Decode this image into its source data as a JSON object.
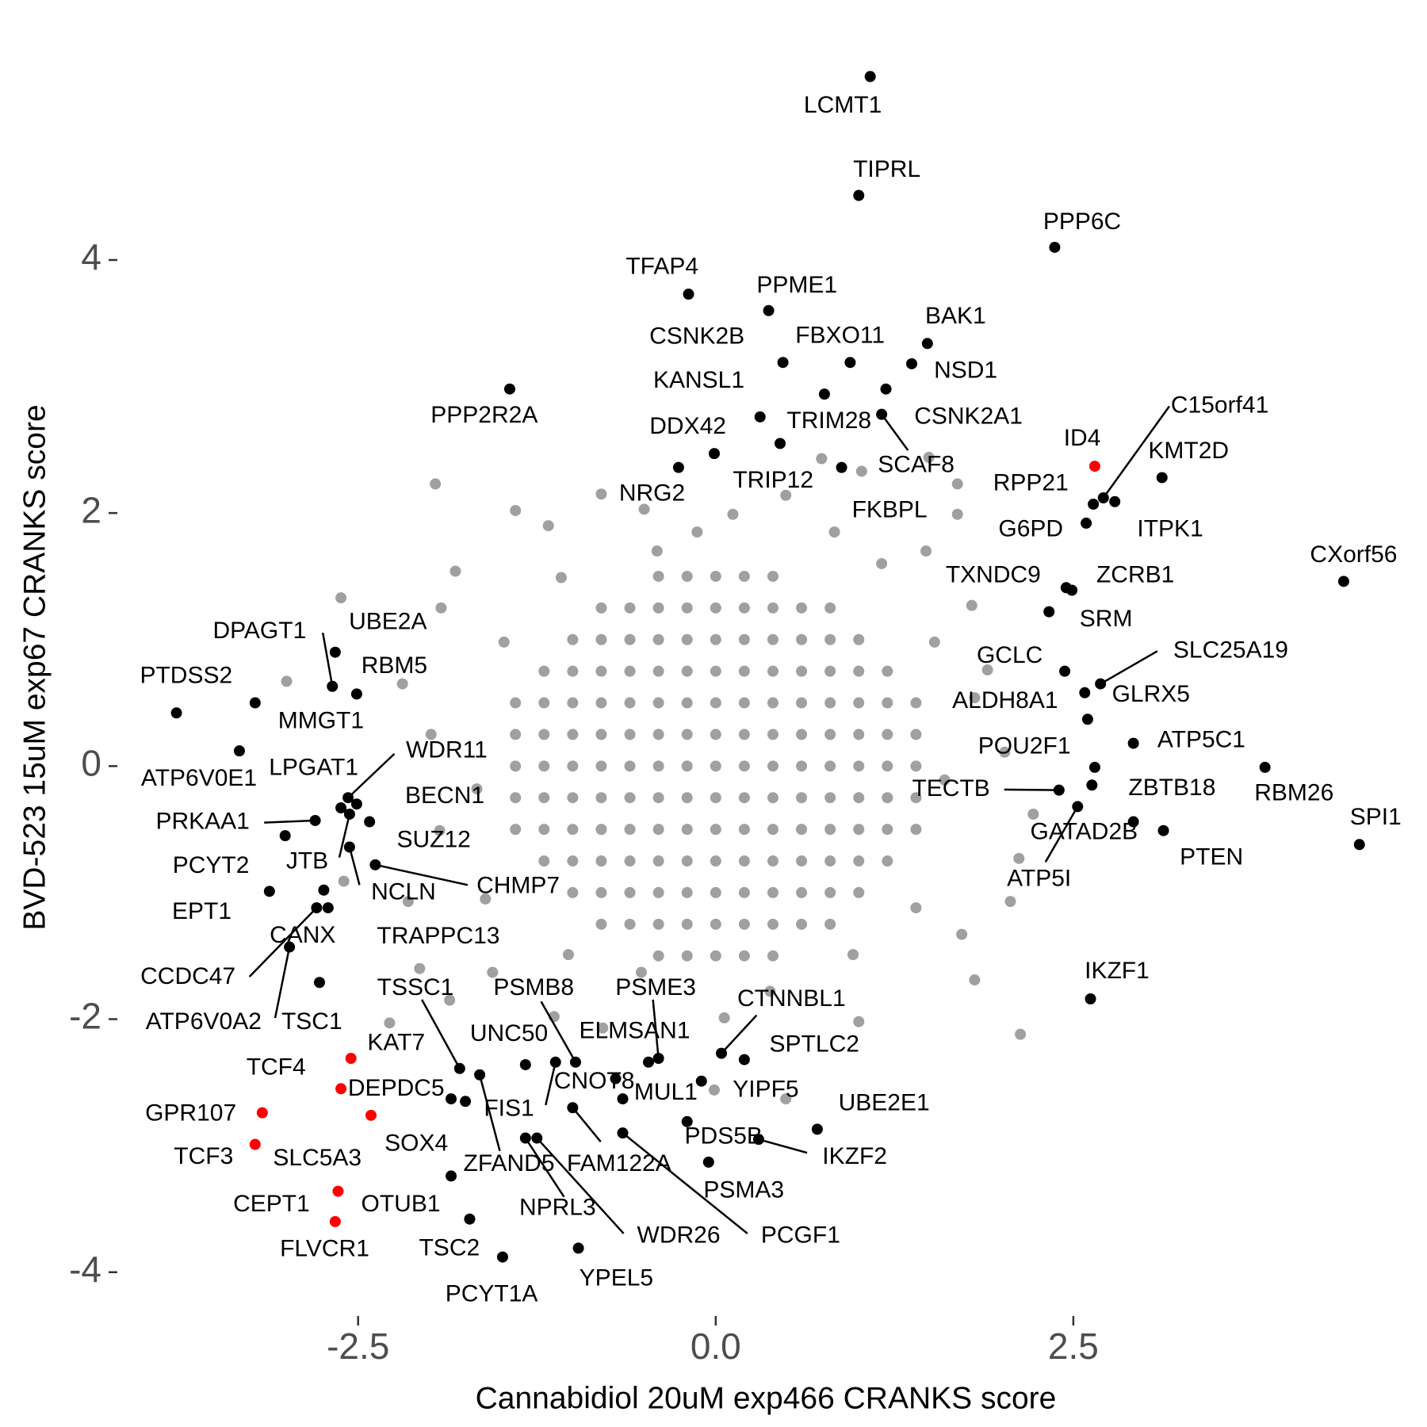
{
  "chart_data": {
    "type": "scatter",
    "x_label": "Cannabidiol 20uM exp466 CRANKS score",
    "y_label": "BVD-523 15uM exp67 CRANKS score",
    "xlim": [
      -4.17,
      4.87
    ],
    "ylim": [
      -4.31,
      5.62
    ],
    "xticks": [
      -2.5,
      {
        "value": 0,
        "label": "0.0"
      },
      2.5
    ],
    "yticks": [
      -4,
      -2,
      0,
      2,
      4
    ],
    "series": [
      {
        "color": "#a0a0a0",
        "x": [
          -0.4,
          -0.2,
          0,
          0.2,
          0.4,
          -0.8,
          -0.6,
          -0.4,
          -0.2,
          0,
          0.2,
          0.4,
          0.6,
          0.8,
          -1,
          -0.8,
          -0.6,
          -0.4,
          -0.2,
          0,
          0.2,
          0.4,
          0.6,
          0.8,
          1,
          -1.2,
          -1,
          -0.8,
          -0.6,
          -0.4,
          -0.2,
          0,
          0.2,
          0.4,
          0.6,
          0.8,
          1,
          1.2,
          -1.4,
          -1.2,
          -1,
          -0.8,
          -0.6,
          -0.4,
          -0.2,
          0,
          0.2,
          0.4,
          0.6,
          0.8,
          1,
          1.2,
          1.4,
          -1.4,
          -1.2,
          -1,
          -0.8,
          -0.6,
          -0.4,
          -0.2,
          0,
          0.2,
          0.4,
          0.6,
          0.8,
          1,
          1.2,
          1.4,
          -1.4,
          -1.2,
          -1,
          -0.8,
          -0.6,
          -0.4,
          -0.2,
          0,
          0.2,
          0.4,
          0.6,
          0.8,
          1,
          1.2,
          1.4,
          -1.4,
          -1.2,
          -1,
          -0.8,
          -0.6,
          -0.4,
          -0.2,
          0,
          0.2,
          0.4,
          0.6,
          0.8,
          1,
          1.2,
          1.4,
          -1.4,
          -1.2,
          -1,
          -0.8,
          -0.6,
          -0.4,
          -0.2,
          0,
          0.2,
          0.4,
          0.6,
          0.8,
          1,
          1.2,
          1.4,
          -1.2,
          -1,
          -0.8,
          -0.6,
          -0.4,
          -0.2,
          0,
          0.2,
          0.4,
          0.6,
          0.8,
          1,
          1.2,
          -1,
          -0.8,
          -0.6,
          -0.4,
          -0.2,
          0,
          0.2,
          0.4,
          0.6,
          0.8,
          1,
          -0.8,
          -0.6,
          -0.4,
          -0.2,
          0,
          0.2,
          0.4,
          0.6,
          0.8,
          -0.4,
          -0.2,
          0,
          0.2,
          0.4,
          -1.96,
          -1.4,
          -0.8,
          -1.17,
          -1.82,
          -2.62,
          -3,
          -1.92,
          -2.19,
          -1.99,
          -1.93,
          -2.6,
          -2.15,
          -2.07,
          -1.86,
          -2.28,
          -1.56,
          -1.13,
          -0.01,
          0.49,
          1,
          2.13,
          1.81,
          1.72,
          2.06,
          2.12,
          2.22,
          2.02,
          1.81,
          1.9,
          1.79,
          1.69,
          1.49,
          0.74,
          1.02,
          1.69,
          0.49,
          0.12,
          0.83,
          1.16,
          -0.5,
          -0.41,
          -1.08,
          -1.48,
          -1.67,
          -1.61,
          -1.03,
          -0.52,
          0.38,
          0.96,
          1.4,
          1.6,
          1.53,
          -0.13,
          0.06,
          -0.79,
          1.47
        ],
        "y": [
          1.5,
          1.5,
          1.5,
          1.5,
          1.5,
          1.25,
          1.25,
          1.25,
          1.25,
          1.25,
          1.25,
          1.25,
          1.25,
          1.25,
          1,
          1,
          1,
          1,
          1,
          1,
          1,
          1,
          1,
          1,
          1,
          0.75,
          0.75,
          0.75,
          0.75,
          0.75,
          0.75,
          0.75,
          0.75,
          0.75,
          0.75,
          0.75,
          0.75,
          0.75,
          0.5,
          0.5,
          0.5,
          0.5,
          0.5,
          0.5,
          0.5,
          0.5,
          0.5,
          0.5,
          0.5,
          0.5,
          0.5,
          0.5,
          0.5,
          0.25,
          0.25,
          0.25,
          0.25,
          0.25,
          0.25,
          0.25,
          0.25,
          0.25,
          0.25,
          0.25,
          0.25,
          0.25,
          0.25,
          0.25,
          0,
          0,
          0,
          0,
          0,
          0,
          0,
          0,
          0,
          0,
          0,
          0,
          0,
          0,
          0,
          -0.25,
          -0.25,
          -0.25,
          -0.25,
          -0.25,
          -0.25,
          -0.25,
          -0.25,
          -0.25,
          -0.25,
          -0.25,
          -0.25,
          -0.25,
          -0.25,
          -0.25,
          -0.5,
          -0.5,
          -0.5,
          -0.5,
          -0.5,
          -0.5,
          -0.5,
          -0.5,
          -0.5,
          -0.5,
          -0.5,
          -0.5,
          -0.5,
          -0.5,
          -0.5,
          -0.75,
          -0.75,
          -0.75,
          -0.75,
          -0.75,
          -0.75,
          -0.75,
          -0.75,
          -0.75,
          -0.75,
          -0.75,
          -0.75,
          -0.75,
          -1,
          -1,
          -1,
          -1,
          -1,
          -1,
          -1,
          -1,
          -1,
          -1,
          -1,
          -1.25,
          -1.25,
          -1.25,
          -1.25,
          -1.25,
          -1.25,
          -1.25,
          -1.25,
          -1.25,
          -1.5,
          -1.5,
          -1.5,
          -1.5,
          -1.5,
          2.23,
          2.02,
          2.15,
          1.9,
          1.54,
          1.33,
          0.67,
          1.25,
          0.65,
          0.25,
          -0.51,
          -0.91,
          -1.07,
          -1.6,
          -1.85,
          -2.03,
          -1.63,
          -1.98,
          -2.56,
          -2.63,
          -2.02,
          -2.12,
          -1.69,
          -1.33,
          -1.07,
          -0.73,
          -0.38,
          0.11,
          0.54,
          0.76,
          1.27,
          1.99,
          2.44,
          2.43,
          2.33,
          2.23,
          2.14,
          1.99,
          1.85,
          1.6,
          2.03,
          1.7,
          1.49,
          0.98,
          -0.18,
          -1.05,
          -1.49,
          -1.63,
          -1.78,
          -1.49,
          -1.12,
          -0.11,
          0.98,
          1.85,
          -1.99,
          -2.07,
          1.7
        ]
      },
      {
        "color": "#000000",
        "labels": [
          "LCMT1",
          "TIPRL",
          "PPP6C",
          "TFAP4",
          "PPME1",
          "CSNK2B",
          "FBXO11",
          "BAK1",
          "NSD1",
          "KANSL1",
          "PPP2R2A",
          "CSNK2A1",
          "TRIM28",
          "SCAF8",
          "DDX42",
          "TRIP12",
          "NRG2",
          "FKBPL",
          "C15orf41",
          "KMT2D",
          "RPP21",
          "ITPK1",
          "G6PD",
          "CXorf56",
          "TXNDC9",
          "ZCRB1",
          "SRM",
          "GCLC",
          "SLC25A19",
          "ALDH8A1",
          "GLRX5",
          "ATP5C1",
          "POU2F1",
          "ZBTB18",
          "RBM26",
          "SPI1",
          "TECTB",
          "ATP5I",
          "GATAD2B",
          "PTEN",
          "IKZF1",
          "UBE2A",
          "DPAGT1",
          "RBM5",
          "PTDSS2",
          "MMGT1",
          "ATP6V0E1",
          "WDR11",
          "LPGAT1",
          "BECN1",
          "PRKAA1",
          "PCYT2",
          "JTB",
          "SUZ12",
          "NCLN",
          "CHMP7",
          "EPT1",
          "CANX",
          "TRAPPC13",
          "CCDC47",
          "ATP6V0A2",
          "TSC1",
          "TSSC1",
          "KAT7",
          "UNC50",
          "PSMB8",
          "PSME3",
          "CTNNBL1",
          "ELMSAN1",
          "SPTLC2",
          "CNOT8",
          "MUL1",
          "YIPF5",
          "FIS1",
          "SLC5A3",
          "ZFAND5",
          "FAM122A",
          "NPRL3",
          "WDR26",
          "PCGF1",
          "PDS5B",
          "IKZF2",
          "UBE2E1",
          "PSMA3",
          "OTUB1",
          "TSC2",
          "PCYT1A",
          "YPEL5"
        ],
        "x": [
          1.08,
          1.0,
          2.37,
          -0.19,
          0.37,
          0.47,
          0.94,
          1.48,
          1.37,
          0.76,
          -1.44,
          1.19,
          0.31,
          1.16,
          -0.01,
          0.45,
          -0.26,
          0.88,
          2.71,
          3.12,
          2.64,
          2.79,
          2.59,
          4.39,
          2.45,
          2.49,
          2.33,
          2.44,
          2.69,
          2.58,
          2.6,
          2.92,
          2.65,
          2.63,
          3.84,
          4.5,
          2.4,
          2.53,
          2.92,
          3.13,
          2.62,
          -2.66,
          -2.68,
          -2.51,
          -3.77,
          -3.22,
          -3.33,
          -2.57,
          -2.62,
          -2.42,
          -2.8,
          -3.01,
          -2.56,
          -2.51,
          -2.56,
          -2.38,
          -3.12,
          -2.74,
          -2.71,
          -2.79,
          -2.98,
          -2.77,
          -1.79,
          -1.85,
          -1.33,
          -0.98,
          -0.4,
          0.04,
          -0.47,
          0.2,
          -0.7,
          -0.65,
          -0.1,
          -1.12,
          -1.75,
          -1.65,
          -1.0,
          -1.33,
          -1.25,
          -0.65,
          -0.2,
          0.3,
          0.71,
          -0.05,
          -1.85,
          -1.72,
          -1.49,
          -0.96
        ],
        "y": [
          5.45,
          4.51,
          4.1,
          3.73,
          3.6,
          3.19,
          3.19,
          3.34,
          3.18,
          2.94,
          2.98,
          2.98,
          2.76,
          2.78,
          2.47,
          2.55,
          2.36,
          2.36,
          2.12,
          2.28,
          2.07,
          2.09,
          1.92,
          1.46,
          1.41,
          1.39,
          1.22,
          0.75,
          0.65,
          0.58,
          0.37,
          0.18,
          -0.01,
          -0.15,
          -0.01,
          -0.62,
          -0.19,
          -0.32,
          -0.44,
          -0.51,
          -1.84,
          0.9,
          0.63,
          0.57,
          0.42,
          0.5,
          0.12,
          -0.25,
          -0.33,
          -0.44,
          -0.43,
          -0.55,
          -0.38,
          -0.3,
          -0.64,
          -0.78,
          -0.99,
          -0.98,
          -1.12,
          -1.12,
          -1.43,
          -1.71,
          -2.39,
          -2.63,
          -2.36,
          -2.34,
          -2.31,
          -2.27,
          -2.34,
          -2.32,
          -2.47,
          -2.63,
          -2.49,
          -2.34,
          -2.65,
          -2.44,
          -2.7,
          -2.94,
          -2.94,
          -2.9,
          -2.81,
          -2.95,
          -2.87,
          -3.13,
          -3.24,
          -3.58,
          -3.88,
          -3.81
        ]
      },
      {
        "color": "#ff0000",
        "labels": [
          "ID4",
          "TCF4",
          "DEPDC5",
          "SOX4",
          "GPR107",
          "TCF3",
          "CEPT1",
          "FLVCR1"
        ],
        "x": [
          2.65,
          -2.55,
          -2.62,
          -2.41,
          -3.17,
          -3.22,
          -2.64,
          -2.66
        ],
        "y": [
          2.37,
          -2.31,
          -2.55,
          -2.76,
          -2.74,
          -2.99,
          -3.36,
          -3.6
        ]
      }
    ]
  }
}
